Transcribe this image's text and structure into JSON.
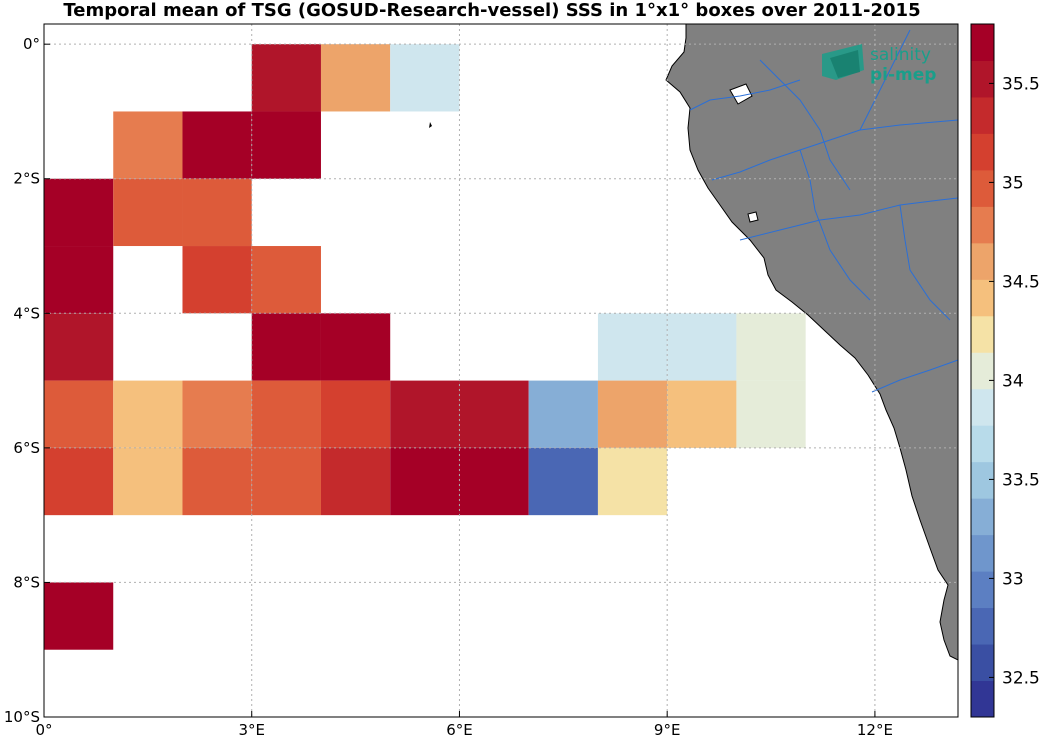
{
  "title": "Temporal mean of TSG (GOSUD-Research-vessel) SSS in 1°x1° boxes over 2011-2015",
  "logo": {
    "line1": "salinity",
    "line2": "pi-mep",
    "color": "#1a9e8a"
  },
  "colors": {
    "land": "#808080",
    "river": "#2b6fd6",
    "grid": "#b0b0b0",
    "missing": "#ffffff"
  },
  "chart_data": {
    "type": "heatmap",
    "title": "Temporal mean of TSG (GOSUD-Research-vessel) SSS in 1°x1° boxes over 2011-2015",
    "lon_range": [
      0,
      13.2
    ],
    "lat_range": [
      -10,
      0.3
    ],
    "x_ticks": [
      {
        "value": 0,
        "label": "0°"
      },
      {
        "value": 3,
        "label": "3°E"
      },
      {
        "value": 6,
        "label": "6°E"
      },
      {
        "value": 9,
        "label": "9°E"
      },
      {
        "value": 12,
        "label": "12°E"
      }
    ],
    "y_ticks": [
      {
        "value": 0,
        "label": "0°"
      },
      {
        "value": -2,
        "label": "2°S"
      },
      {
        "value": -4,
        "label": "4°S"
      },
      {
        "value": -6,
        "label": "6°S"
      },
      {
        "value": -8,
        "label": "8°S"
      },
      {
        "value": -10,
        "label": "10°S"
      }
    ],
    "grid": true,
    "colorbar": {
      "range": [
        32.3,
        35.8
      ],
      "ticks": [
        32.5,
        33,
        33.5,
        34,
        34.5,
        35,
        35.5
      ],
      "colors": [
        "#313695",
        "#3a4fa3",
        "#4a67b4",
        "#5c7fc2",
        "#6f96cc",
        "#86aed6",
        "#9ec7e0",
        "#b8dbea",
        "#cfe6ee",
        "#e5ecd9",
        "#f5e2a6",
        "#f5c07d",
        "#eda46a",
        "#e67c4f",
        "#dd5b3a",
        "#d4402f",
        "#c42a2c",
        "#b0152a",
        "#a50026"
      ]
    },
    "cells": [
      {
        "lon": 3,
        "lat": 0,
        "value": 35.6
      },
      {
        "lon": 4,
        "lat": 0,
        "value": 34.6
      },
      {
        "lon": 5,
        "lat": 0,
        "value": 33.9
      },
      {
        "lon": 1,
        "lat": -1,
        "value": 34.8
      },
      {
        "lon": 2,
        "lat": -1,
        "value": 35.8
      },
      {
        "lon": 3,
        "lat": -1,
        "value": 35.8
      },
      {
        "lon": 0,
        "lat": -2,
        "value": 35.8
      },
      {
        "lon": 1,
        "lat": -2,
        "value": 34.9
      },
      {
        "lon": 2,
        "lat": -2,
        "value": 34.9
      },
      {
        "lon": 0,
        "lat": -3,
        "value": 35.8
      },
      {
        "lon": 2,
        "lat": -3,
        "value": 35.1
      },
      {
        "lon": 3,
        "lat": -3,
        "value": 34.9
      },
      {
        "lon": 0,
        "lat": -4,
        "value": 35.5
      },
      {
        "lon": 3,
        "lat": -4,
        "value": 35.7
      },
      {
        "lon": 4,
        "lat": -4,
        "value": 35.8
      },
      {
        "lon": 8,
        "lat": -4,
        "value": 33.8
      },
      {
        "lon": 9,
        "lat": -4,
        "value": 33.8
      },
      {
        "lon": 10,
        "lat": -4,
        "value": 34.1
      },
      {
        "lon": 0,
        "lat": -5,
        "value": 34.9
      },
      {
        "lon": 1,
        "lat": -5,
        "value": 34.4
      },
      {
        "lon": 2,
        "lat": -5,
        "value": 34.8
      },
      {
        "lon": 3,
        "lat": -5,
        "value": 34.9
      },
      {
        "lon": 4,
        "lat": -5,
        "value": 35.1
      },
      {
        "lon": 5,
        "lat": -5,
        "value": 35.5
      },
      {
        "lon": 6,
        "lat": -5,
        "value": 35.5
      },
      {
        "lon": 7,
        "lat": -5,
        "value": 33.4
      },
      {
        "lon": 8,
        "lat": -5,
        "value": 34.6
      },
      {
        "lon": 9,
        "lat": -5,
        "value": 34.4
      },
      {
        "lon": 10,
        "lat": -5,
        "value": 34.1
      },
      {
        "lon": 0,
        "lat": -6,
        "value": 35.1
      },
      {
        "lon": 1,
        "lat": -6,
        "value": 34.4
      },
      {
        "lon": 2,
        "lat": -6,
        "value": 34.9
      },
      {
        "lon": 3,
        "lat": -6,
        "value": 34.9
      },
      {
        "lon": 4,
        "lat": -6,
        "value": 35.4
      },
      {
        "lon": 5,
        "lat": -6,
        "value": 35.7
      },
      {
        "lon": 6,
        "lat": -6,
        "value": 35.7
      },
      {
        "lon": 7,
        "lat": -6,
        "value": 32.8
      },
      {
        "lon": 8,
        "lat": -6,
        "value": 34.2
      },
      {
        "lon": 0,
        "lat": -8,
        "value": 35.8
      }
    ]
  }
}
